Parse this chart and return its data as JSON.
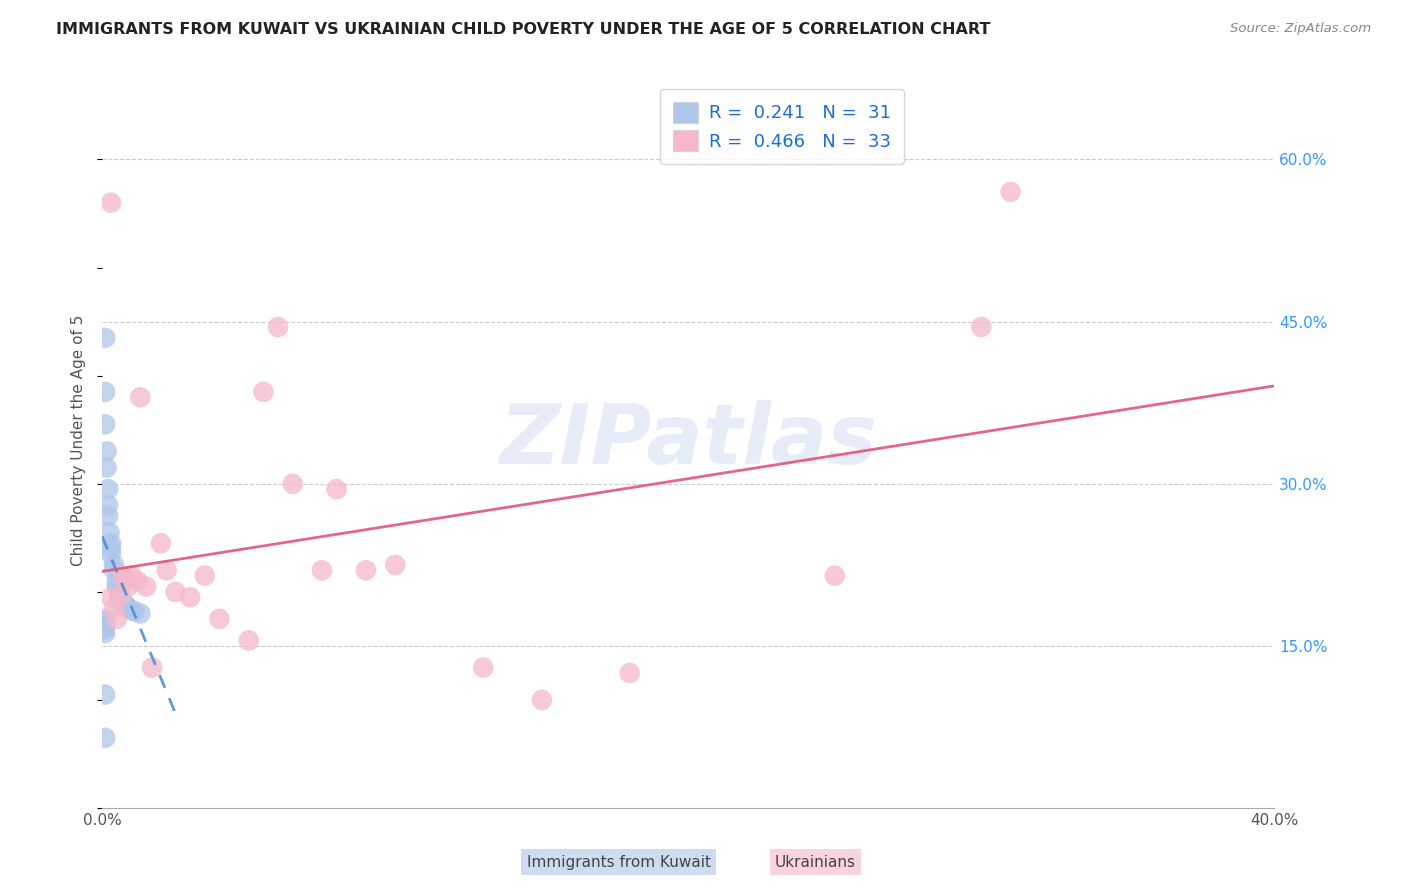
{
  "title": "IMMIGRANTS FROM KUWAIT VS UKRAINIAN CHILD POVERTY UNDER THE AGE OF 5 CORRELATION CHART",
  "source": "Source: ZipAtlas.com",
  "ylabel_label": "Child Poverty Under the Age of 5",
  "xlim": [
    0.0,
    0.4
  ],
  "ylim": [
    0.0,
    0.68
  ],
  "kuwait_R": "0.241",
  "kuwait_N": "31",
  "ukraine_R": "0.466",
  "ukraine_N": "33",
  "kuwait_color": "#aec6e8",
  "ukraine_color": "#f5b8cb",
  "kuwait_line_color": "#4a90d9",
  "ukraine_line_color": "#e05878",
  "legend_text_color": "#1a6fd4",
  "watermark": "ZIPatlas",
  "kuwait_x": [
    0.001,
    0.001,
    0.001,
    0.0015,
    0.0015,
    0.002,
    0.002,
    0.002,
    0.0025,
    0.003,
    0.003,
    0.003,
    0.004,
    0.004,
    0.005,
    0.005,
    0.006,
    0.006,
    0.007,
    0.008,
    0.009,
    0.01,
    0.011,
    0.013,
    0.001,
    0.001,
    0.001,
    0.0008,
    0.001,
    0.001,
    0.001
  ],
  "kuwait_y": [
    0.435,
    0.385,
    0.355,
    0.33,
    0.315,
    0.295,
    0.28,
    0.27,
    0.255,
    0.245,
    0.24,
    0.235,
    0.225,
    0.22,
    0.21,
    0.205,
    0.2,
    0.195,
    0.19,
    0.188,
    0.185,
    0.183,
    0.182,
    0.18,
    0.175,
    0.172,
    0.168,
    0.165,
    0.162,
    0.105,
    0.065
  ],
  "ukraine_x": [
    0.003,
    0.003,
    0.004,
    0.005,
    0.006,
    0.007,
    0.008,
    0.009,
    0.01,
    0.012,
    0.013,
    0.015,
    0.017,
    0.02,
    0.022,
    0.025,
    0.03,
    0.035,
    0.04,
    0.05,
    0.055,
    0.06,
    0.065,
    0.075,
    0.08,
    0.09,
    0.1,
    0.13,
    0.15,
    0.18,
    0.25,
    0.3,
    0.31
  ],
  "ukraine_y": [
    0.56,
    0.195,
    0.185,
    0.175,
    0.195,
    0.215,
    0.21,
    0.205,
    0.215,
    0.21,
    0.38,
    0.205,
    0.13,
    0.245,
    0.22,
    0.2,
    0.195,
    0.215,
    0.175,
    0.155,
    0.385,
    0.445,
    0.3,
    0.22,
    0.295,
    0.22,
    0.225,
    0.13,
    0.1,
    0.125,
    0.215,
    0.445,
    0.57
  ]
}
